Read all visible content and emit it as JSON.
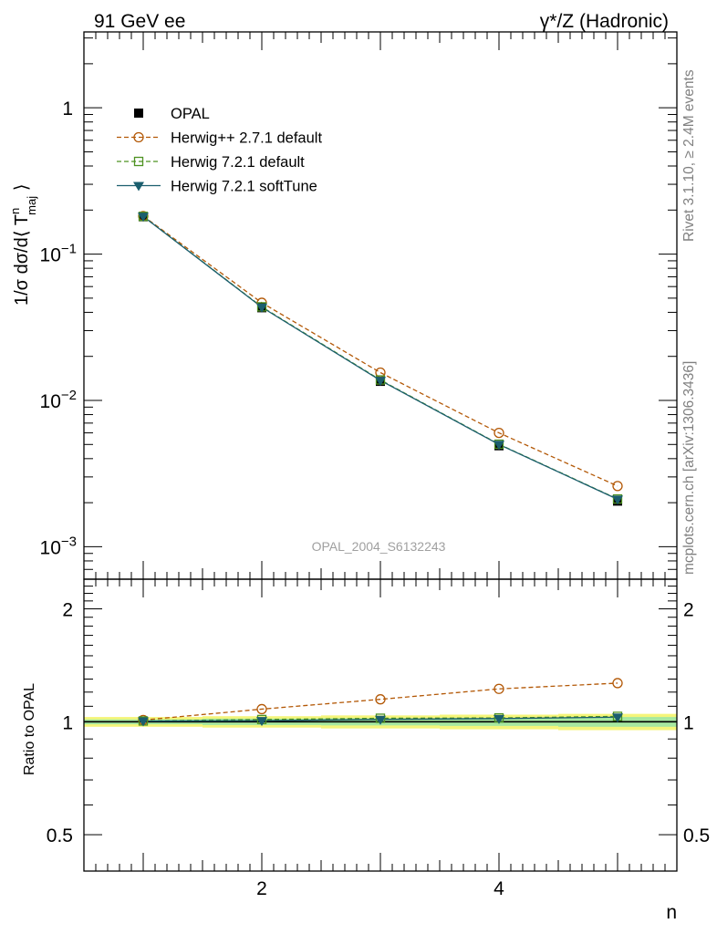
{
  "header": {
    "left": "91 GeV ee",
    "right": "γ*/Z (Hadronic)"
  },
  "side_labels": {
    "rivet": "Rivet 3.1.10, ≥ 2.4M events",
    "mcplots": "mcplots.cern.ch [arXiv:1306.3436]"
  },
  "analysis_tag": "OPAL_2004_S6132243",
  "colors": {
    "opal": "#000000",
    "herwigpp": "#b35806",
    "herwig_default": "#4d9221",
    "herwig_soft": "#1b5e6e",
    "band_outer": "#f5f57a",
    "band_inner": "#a6e8a0"
  },
  "chart_data": [
    {
      "type": "line",
      "panel": "main",
      "ylabel_parts": {
        "prefix": "1/σ dσ/d⟨ T",
        "sup": "n",
        "sub": "maj",
        "suffix": " ⟩"
      },
      "yscale": "log",
      "ylim": [
        0.0006,
        3.3
      ],
      "xlim": [
        0.5,
        5.5
      ],
      "ytick_labels": [
        {
          "base": "10",
          "exp": "−3"
        },
        {
          "base": "10",
          "exp": "−2"
        },
        {
          "base": "10",
          "exp": "−1"
        },
        {
          "base": "1",
          "exp": ""
        }
      ],
      "legend_position": "top-left",
      "x": [
        1,
        2,
        3,
        4,
        5
      ],
      "series": [
        {
          "name": "OPAL",
          "marker": "square-filled",
          "values": [
            0.18,
            0.043,
            0.0135,
            0.0049,
            0.00205
          ]
        },
        {
          "name": "Herwig++ 2.7.1 default",
          "marker": "circle-open",
          "dash": "dashed",
          "values": [
            0.182,
            0.0465,
            0.0155,
            0.006,
            0.0026
          ]
        },
        {
          "name": "Herwig 7.2.1 default",
          "marker": "square-open",
          "dash": "dashed",
          "values": [
            0.181,
            0.0436,
            0.0138,
            0.00502,
            0.00212
          ]
        },
        {
          "name": "Herwig 7.2.1 softTune",
          "marker": "triangle-down-filled",
          "dash": "solid",
          "values": [
            0.181,
            0.0433,
            0.0137,
            0.005,
            0.00211
          ]
        }
      ]
    },
    {
      "type": "line",
      "panel": "ratio",
      "ylabel": "Ratio to OPAL",
      "xlabel": "n",
      "yscale": "log",
      "ylim": [
        0.4,
        2.4
      ],
      "xlim": [
        0.5,
        5.5
      ],
      "ytick_labels": [
        "0.5",
        "1",
        "2"
      ],
      "xtick_labels": [
        "2",
        "4"
      ],
      "x": [
        1,
        2,
        3,
        4,
        5
      ],
      "band_bins": [
        [
          0.5,
          1.5
        ],
        [
          1.5,
          2.5
        ],
        [
          2.5,
          3.5
        ],
        [
          3.5,
          4.5
        ],
        [
          4.5,
          5.5
        ]
      ],
      "band_outer": [
        [
          0.97,
          1.03
        ],
        [
          0.965,
          1.035
        ],
        [
          0.96,
          1.04
        ],
        [
          0.955,
          1.045
        ],
        [
          0.95,
          1.05
        ]
      ],
      "band_inner": [
        [
          0.985,
          1.015
        ],
        [
          0.98,
          1.02
        ],
        [
          0.978,
          1.022
        ],
        [
          0.975,
          1.025
        ],
        [
          0.97,
          1.03
        ]
      ],
      "series": [
        {
          "name": "Herwig++ 2.7.1 default",
          "values": [
            1.011,
            1.081,
            1.148,
            1.224,
            1.268
          ]
        },
        {
          "name": "Herwig 7.2.1 default",
          "values": [
            1.005,
            1.014,
            1.022,
            1.024,
            1.034
          ]
        },
        {
          "name": "Herwig 7.2.1 softTune",
          "values": [
            1.005,
            1.007,
            1.015,
            1.02,
            1.029
          ]
        }
      ]
    }
  ]
}
